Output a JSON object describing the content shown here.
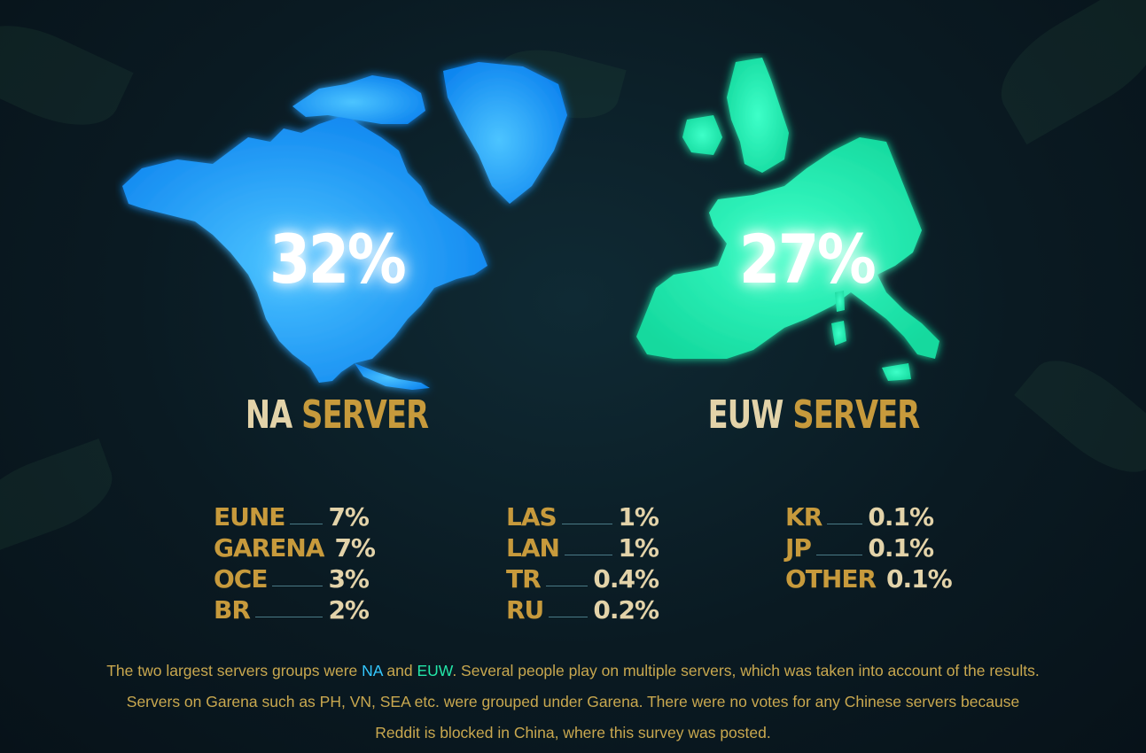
{
  "chart_data": {
    "type": "table",
    "main": [
      {
        "code": "NA",
        "word": "SERVER",
        "value": "32%",
        "color": "#1aa8ff"
      },
      {
        "code": "EUW",
        "word": "SERVER",
        "value": "27%",
        "color": "#1ff0b4"
      }
    ],
    "columns": [
      [
        {
          "name": "EUNE",
          "value": "7%"
        },
        {
          "name": "GARENA",
          "value": "7%"
        },
        {
          "name": "OCE",
          "value": "3%"
        },
        {
          "name": "BR",
          "value": "2%"
        }
      ],
      [
        {
          "name": "LAS",
          "value": "1%"
        },
        {
          "name": "LAN",
          "value": "1%"
        },
        {
          "name": "TR",
          "value": "0.4%"
        },
        {
          "name": "RU",
          "value": "0.2%"
        }
      ],
      [
        {
          "name": "KR",
          "value": "0.1%"
        },
        {
          "name": "JP",
          "value": "0.1%"
        },
        {
          "name": "OTHER",
          "value": "0.1%"
        }
      ]
    ]
  },
  "caption": {
    "line1_pre": "The two largest servers groups were ",
    "line1_na": "NA",
    "line1_and": " and ",
    "line1_euw": "EUW",
    "line1_post": ". Several people play on multiple servers, which was taken into account of the results.",
    "line2": "Servers on Garena such as PH, VN, SEA etc. were grouped under Garena. There were no votes for any Chinese servers because",
    "line3": "Reddit is blocked in China, where this survey was posted."
  },
  "colors": {
    "gold": "#c79a3c",
    "cream": "#e3d3a9",
    "na": "#1aa8ff",
    "euw": "#1ff0b4",
    "bg": "#0a1a22"
  }
}
